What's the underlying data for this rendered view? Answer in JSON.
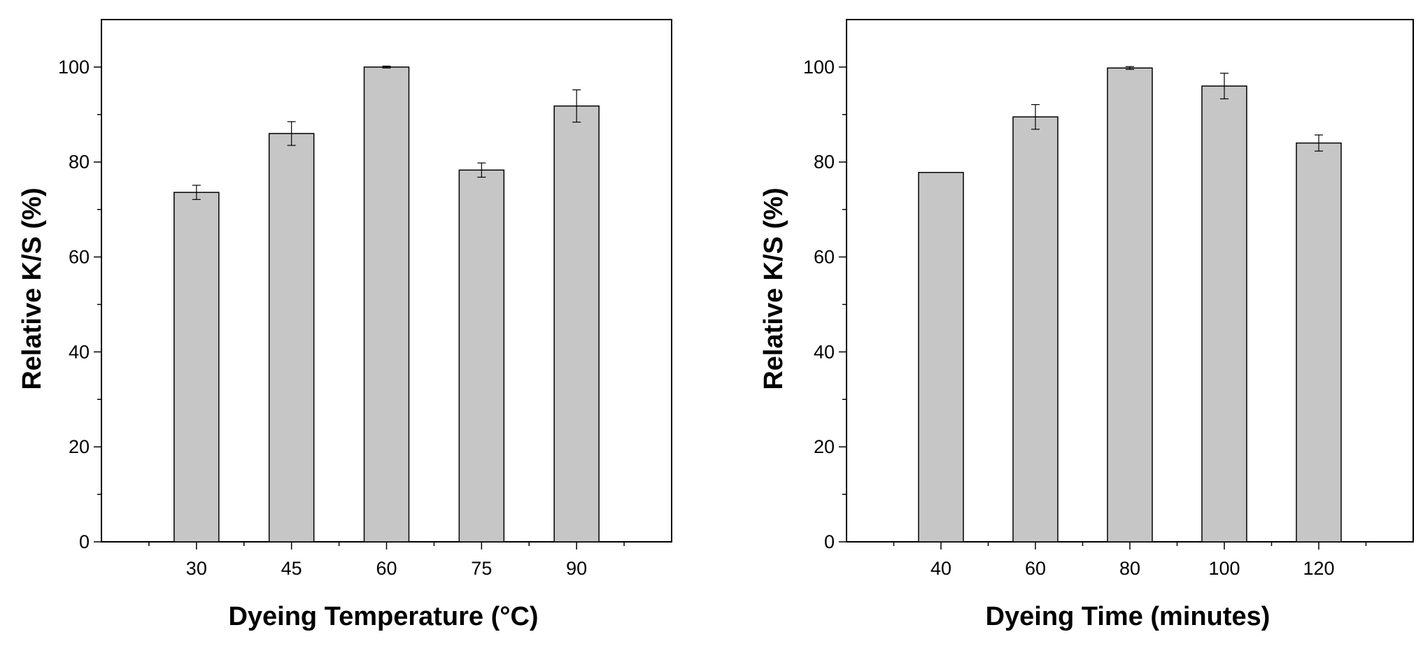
{
  "chart_data": [
    {
      "type": "bar",
      "title": "",
      "xlabel": "Dyeing Temperature (°C)",
      "ylabel": "Relative K/S (%)",
      "categories": [
        "30",
        "45",
        "60",
        "75",
        "90"
      ],
      "values": [
        73.6,
        86.0,
        100.0,
        78.3,
        91.8
      ],
      "errors": [
        1.5,
        2.5,
        0.2,
        1.5,
        3.4
      ],
      "ylim": [
        0,
        110
      ],
      "yticks": [
        "0",
        "20",
        "40",
        "60",
        "80",
        "100"
      ],
      "bar_color": "#c6c6c6",
      "grid": false
    },
    {
      "type": "bar",
      "title": "",
      "xlabel": "Dyeing Time (minutes)",
      "ylabel": "Relative K/S (%)",
      "categories": [
        "40",
        "60",
        "80",
        "100",
        "120"
      ],
      "values": [
        77.8,
        89.5,
        99.8,
        96.0,
        84.0
      ],
      "errors": [
        0.0,
        2.6,
        0.3,
        2.7,
        1.7
      ],
      "ylim": [
        0,
        110
      ],
      "yticks": [
        "0",
        "20",
        "40",
        "60",
        "80",
        "100"
      ],
      "bar_color": "#c6c6c6",
      "grid": false
    }
  ]
}
